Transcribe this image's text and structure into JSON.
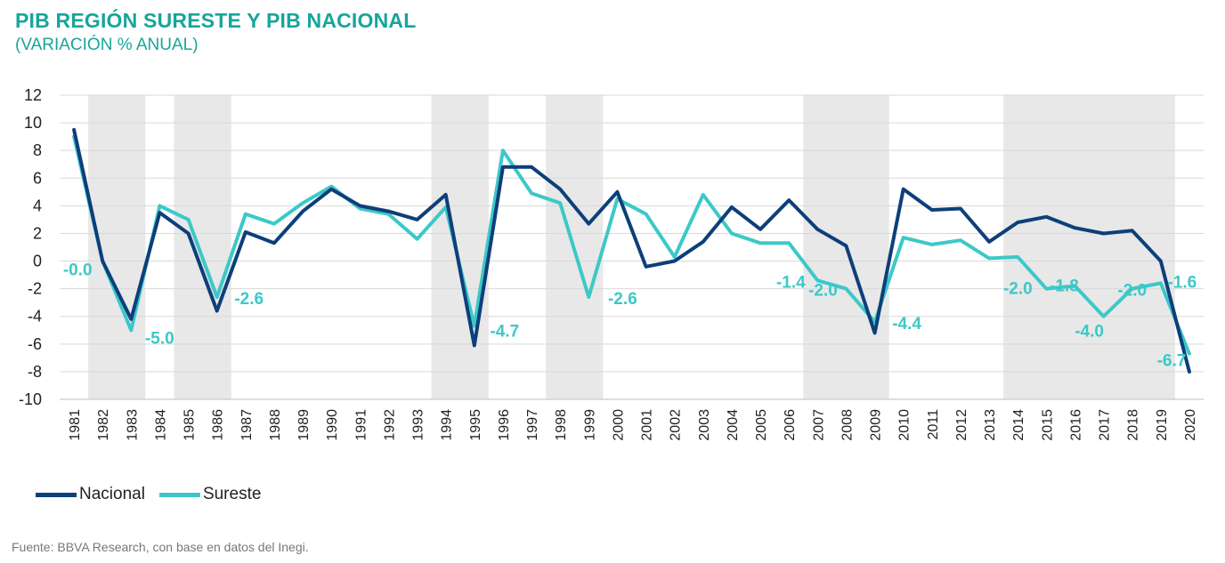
{
  "title": "PIB REGIÓN SURESTE Y PIB NACIONAL",
  "subtitle": "(VARIACIÓN % ANUAL)",
  "source": "Fuente: BBVA Research, con base en datos del Inegi.",
  "colors": {
    "nacional": "#0d3f7a",
    "sureste": "#3cc8c8",
    "label": "#3cc8c8",
    "title": "#17a59a",
    "shade": "#e8e8e8",
    "grid": "#d9d9d9"
  },
  "chart_data": {
    "type": "line",
    "title": "PIB REGIÓN SURESTE Y PIB NACIONAL",
    "subtitle": "(VARIACIÓN % ANUAL)",
    "x": [
      "1981",
      "1982",
      "1983",
      "1984",
      "1985",
      "1986",
      "1987",
      "1988",
      "1989",
      "1990",
      "1991",
      "1992",
      "1993",
      "1994",
      "1995",
      "1996",
      "1997",
      "1998",
      "1999",
      "2000",
      "2001",
      "2002",
      "2003",
      "2004",
      "2005",
      "2006",
      "2007",
      "2008",
      "2009",
      "2010",
      "2011",
      "2012",
      "2013",
      "2014",
      "2015",
      "2016",
      "2017",
      "2018",
      "2019",
      "2020"
    ],
    "ylim": [
      -10,
      12
    ],
    "yticks": [
      12,
      10,
      8,
      6,
      4,
      2,
      0,
      -2,
      -4,
      -6,
      -8,
      -10
    ],
    "grid": true,
    "legend_position": "bottom-left",
    "series": [
      {
        "name": "Nacional",
        "values": [
          9.5,
          0.0,
          -4.2,
          3.5,
          2.0,
          -3.6,
          2.1,
          1.3,
          3.6,
          5.2,
          4.0,
          3.6,
          3.0,
          4.8,
          -6.1,
          6.8,
          6.8,
          5.2,
          2.7,
          5.0,
          -0.4,
          0.0,
          1.4,
          3.9,
          2.3,
          4.4,
          2.3,
          1.1,
          -5.2,
          5.2,
          3.7,
          3.8,
          1.4,
          2.8,
          3.2,
          2.4,
          2.0,
          2.2,
          0.0,
          -8.0
        ]
      },
      {
        "name": "Sureste",
        "values": [
          9.0,
          0.0,
          -5.0,
          4.0,
          3.0,
          -2.6,
          3.4,
          2.7,
          4.2,
          5.4,
          3.8,
          3.4,
          1.6,
          3.9,
          -4.7,
          8.0,
          4.9,
          4.2,
          -2.6,
          4.5,
          3.4,
          0.3,
          4.8,
          2.0,
          1.3,
          1.3,
          -1.4,
          -2.0,
          -4.4,
          1.7,
          1.2,
          1.5,
          0.2,
          0.3,
          -2.0,
          -1.8,
          -4.0,
          -2.0,
          -1.6,
          -6.7
        ]
      }
    ],
    "recession_shading": [
      [
        "1982",
        "1983"
      ],
      [
        "1985",
        "1986"
      ],
      [
        "1994",
        "1995"
      ],
      [
        "1998",
        "1999"
      ],
      [
        "2007",
        "2009"
      ],
      [
        "2014",
        "2019"
      ]
    ],
    "annotations": [
      {
        "x": "1982",
        "text": "-0.0"
      },
      {
        "x": "1983",
        "text": "-5.0"
      },
      {
        "x": "1986",
        "text": "-2.6"
      },
      {
        "x": "1995",
        "text": "-4.7"
      },
      {
        "x": "1999",
        "text": "-2.6"
      },
      {
        "x": "2007",
        "text": "-1.4"
      },
      {
        "x": "2008",
        "text": "-2.0"
      },
      {
        "x": "2009",
        "text": "-4.4"
      },
      {
        "x": "2015",
        "text": "-2.0"
      },
      {
        "x": "2016",
        "text": "-1.8"
      },
      {
        "x": "2017",
        "text": "-4.0"
      },
      {
        "x": "2018",
        "text": "-2.0"
      },
      {
        "x": "2019",
        "text": "-1.6"
      },
      {
        "x": "2020",
        "text": "-6.7"
      }
    ]
  }
}
